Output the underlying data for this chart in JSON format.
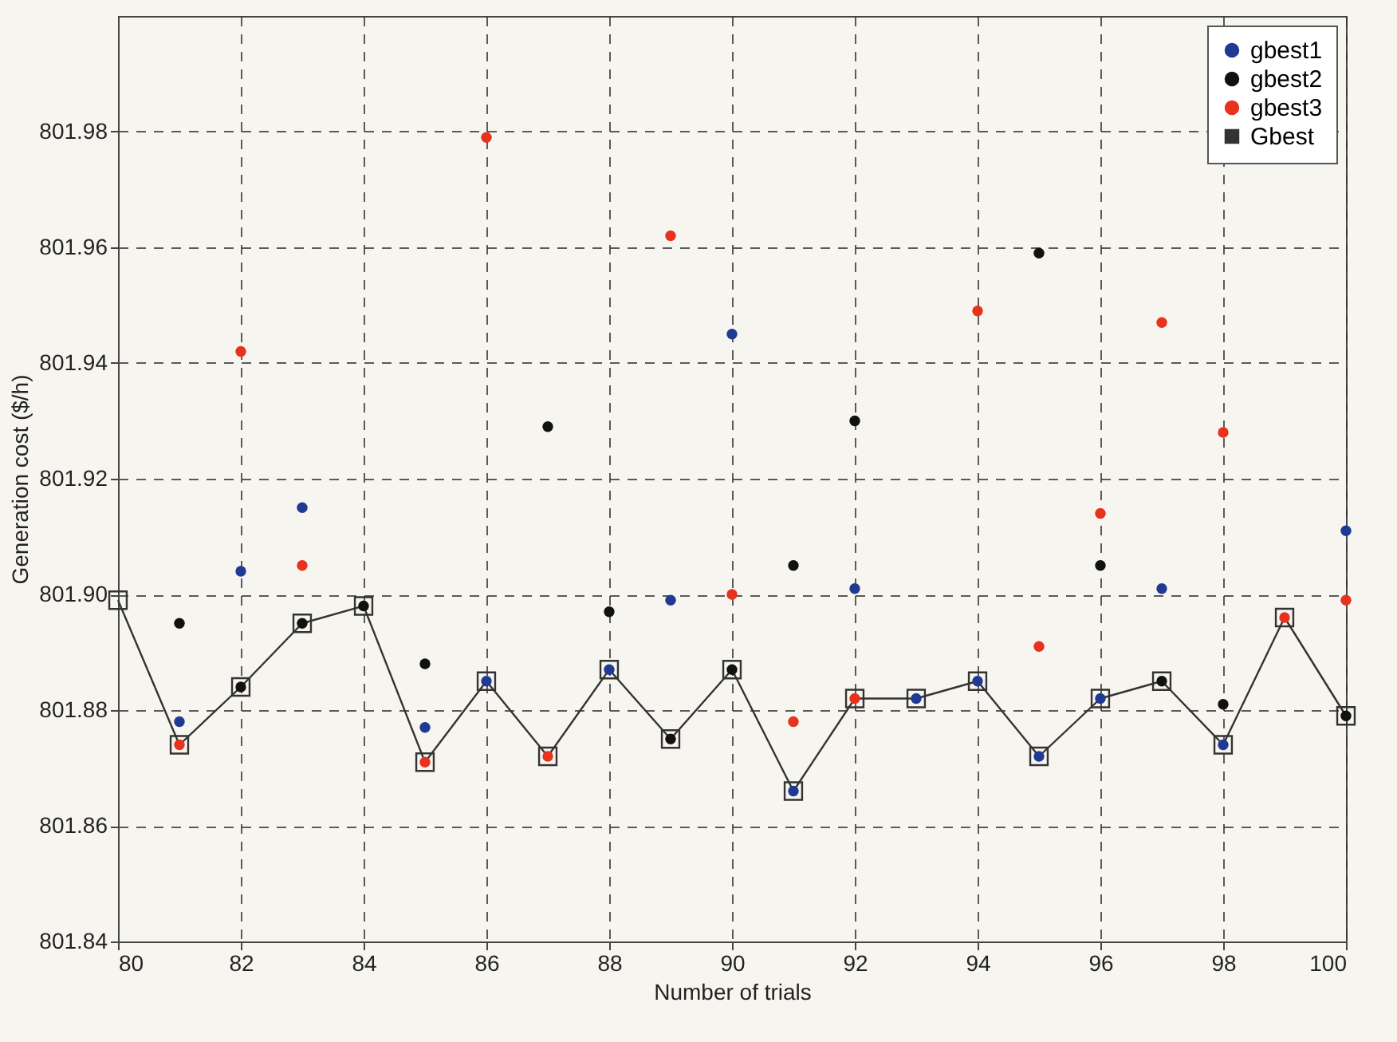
{
  "chart_data": {
    "type": "scatter",
    "xlabel": "Number of trials",
    "ylabel": "Generation cost ($/h)",
    "xlim": [
      80,
      100
    ],
    "xticks": [
      80,
      82,
      84,
      86,
      88,
      90,
      92,
      94,
      96,
      98,
      100
    ],
    "ylim": [
      801.84,
      802.0
    ],
    "yticks": [
      801.84,
      801.86,
      801.88,
      {
        "value": 801.9,
        "label": "801.90"
      },
      801.92,
      801.94,
      801.96,
      801.98
    ],
    "grid": true,
    "legend": "top right",
    "marker": "circle",
    "series": [
      {
        "name": "gbest1",
        "color": "#1f3a93",
        "x": [
          81,
          82,
          83,
          85,
          86,
          88,
          89,
          90,
          91,
          92,
          93,
          94,
          95,
          96,
          97,
          98,
          100
        ],
        "values": [
          801.878,
          801.904,
          801.915,
          801.877,
          801.885,
          801.887,
          801.899,
          801.945,
          801.866,
          801.901,
          801.882,
          801.885,
          801.872,
          801.882,
          801.901,
          801.874,
          801.911
        ]
      },
      {
        "name": "gbest2",
        "color": "#111111",
        "x": [
          81,
          82,
          83,
          84,
          85,
          87,
          88,
          89,
          90,
          91,
          92,
          95,
          96,
          97,
          98,
          100
        ],
        "values": [
          801.895,
          801.884,
          801.895,
          801.898,
          801.888,
          801.929,
          801.897,
          801.875,
          801.887,
          801.905,
          801.93,
          801.959,
          801.905,
          801.885,
          801.881,
          801.879
        ]
      },
      {
        "name": "gbest3",
        "color": "#e8321e",
        "x": [
          81,
          82,
          83,
          85,
          86,
          87,
          89,
          90,
          91,
          92,
          94,
          95,
          96,
          97,
          98,
          99,
          100
        ],
        "values": [
          801.874,
          801.942,
          801.905,
          801.871,
          801.979,
          801.872,
          801.962,
          801.9,
          801.878,
          801.882,
          801.949,
          801.891,
          801.914,
          801.947,
          801.928,
          801.896,
          801.899
        ]
      },
      {
        "name": "Gbest",
        "type": "line",
        "marker": "square",
        "color": "#333333",
        "x": [
          80,
          81,
          82,
          83,
          84,
          85,
          86,
          87,
          88,
          89,
          90,
          91,
          92,
          93,
          94,
          95,
          96,
          97,
          98,
          99,
          100
        ],
        "values": [
          801.899,
          801.874,
          801.884,
          801.895,
          801.898,
          801.871,
          801.885,
          801.872,
          801.887,
          801.875,
          801.887,
          801.866,
          801.882,
          801.882,
          801.885,
          801.872,
          801.882,
          801.885,
          801.874,
          801.896,
          801.879
        ]
      }
    ]
  }
}
